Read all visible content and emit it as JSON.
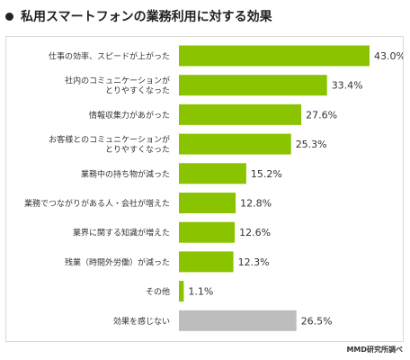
{
  "title": "私用スマートフォンの業務利用に対する効果",
  "source": "MMD研究所調べ",
  "colors": {
    "bar": "#8ac400",
    "bar_none": "#bdbdbd",
    "frame": "#d8d8d8"
  },
  "chart_data": {
    "type": "bar",
    "orientation": "horizontal",
    "categories": [
      [
        "仕事の効率、スピードが上がった"
      ],
      [
        "社内のコミュニケーションが",
        "とりやすくなった"
      ],
      [
        "情報収集力があがった"
      ],
      [
        "お客様とのコミュニケーションが",
        "とりやすくなった"
      ],
      [
        "業務中の持ち物が減った"
      ],
      [
        "業務でつながりがある人・会社が増えた"
      ],
      [
        "業界に関する知識が増えた"
      ],
      [
        "残業（時間外労働）が減った"
      ],
      [
        "その他"
      ],
      [
        "効果を感じない"
      ]
    ],
    "values": [
      43.0,
      33.4,
      27.6,
      25.3,
      15.2,
      12.8,
      12.6,
      12.3,
      1.1,
      26.5
    ],
    "value_labels": [
      "43.0%",
      "33.4%",
      "27.6%",
      "25.3%",
      "15.2%",
      "12.8%",
      "12.6%",
      "12.3%",
      "1.1%",
      "26.5%"
    ],
    "gray_categories": [
      9
    ],
    "xlim": [
      0,
      43.0
    ],
    "unit": "%",
    "grid": false,
    "legend": "none"
  }
}
